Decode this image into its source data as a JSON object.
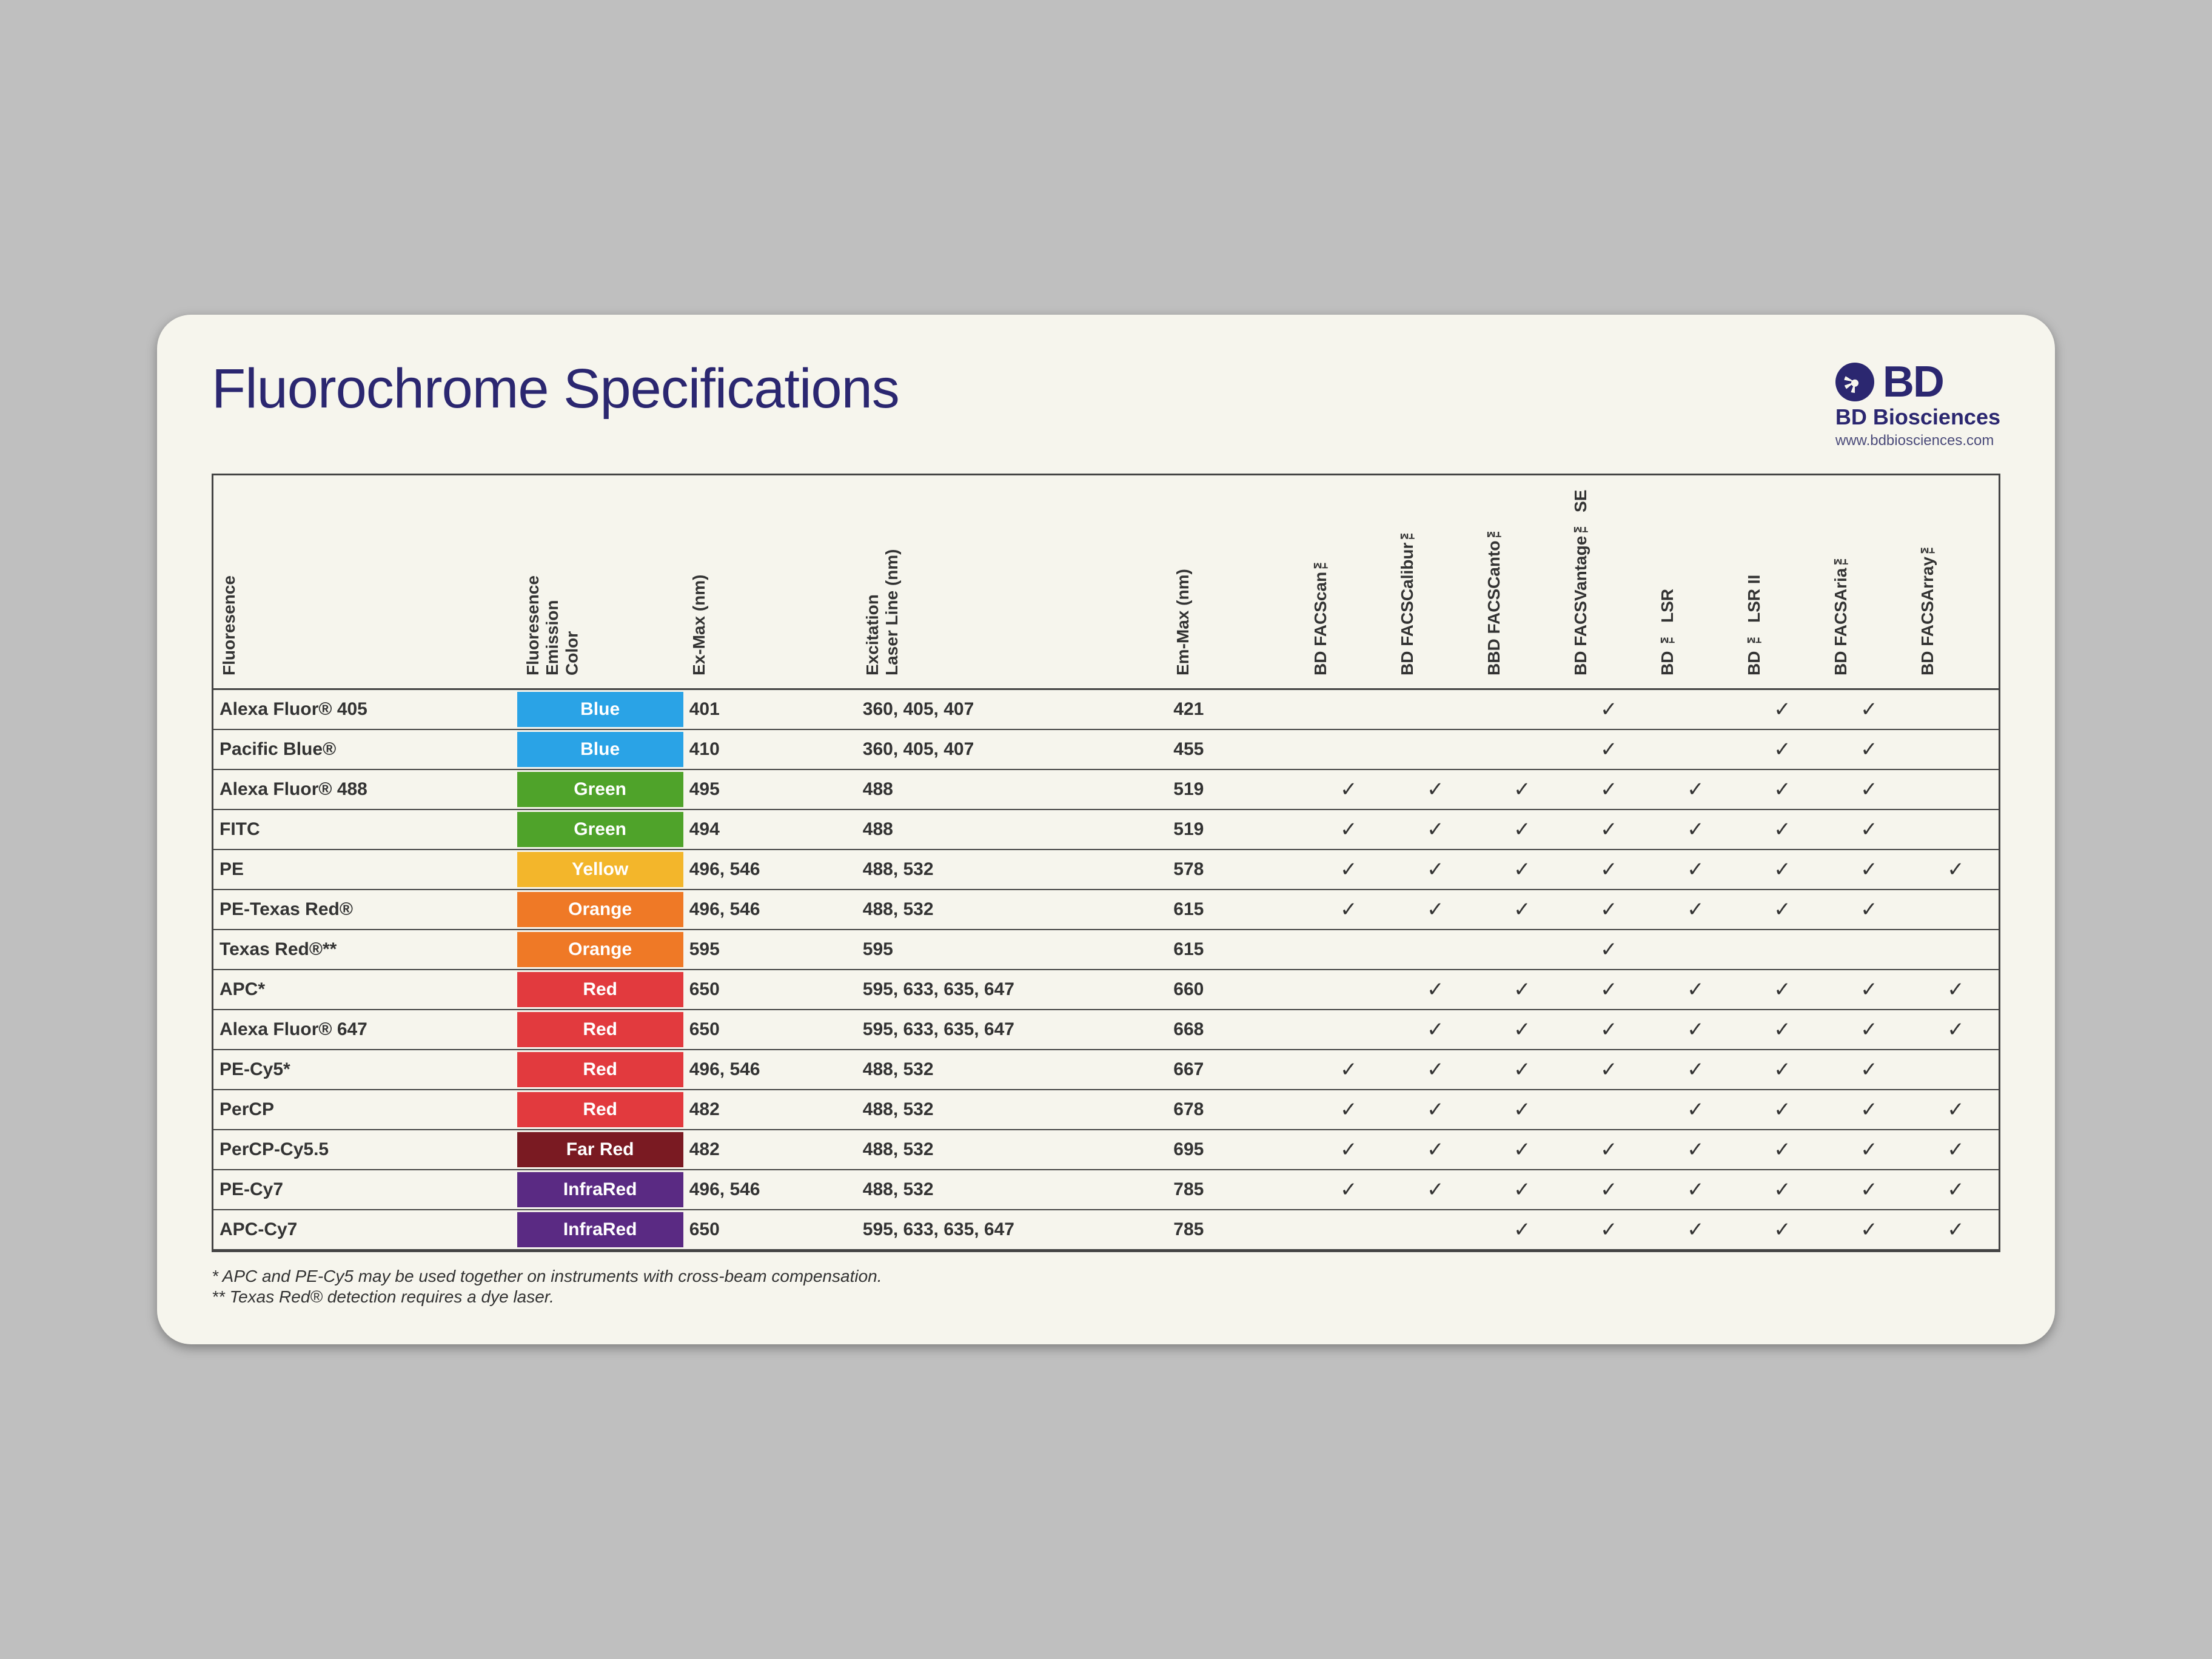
{
  "title": "Fluorochrome Specifications",
  "brand": {
    "name": "BD",
    "sub": "BD Biosciences",
    "url": "www.bdbiosciences.com"
  },
  "columns": [
    "Fluoresence",
    "Fluoresence\nEmission\nColor",
    "Ex-Max (nm)",
    "Excitation\nLaser Line (nm)",
    "Em-Max (nm)",
    "BD FACScan™",
    "BD FACSCalibur™",
    "BBD FACSCanto™",
    "BD FACSVantage™ SE",
    "BD ™ LSR",
    "BD ™ LSR II",
    "BD FACSAria™",
    "BD FACSArray™"
  ],
  "color_styles": {
    "Blue": {
      "bg": "#2aa3e6",
      "fg": "#ffffff"
    },
    "Green": {
      "bg": "#4fa32a",
      "fg": "#ffffff"
    },
    "Yellow": {
      "bg": "#f3b62b",
      "fg": "#ffffff"
    },
    "Orange": {
      "bg": "#ef7926",
      "fg": "#ffffff"
    },
    "Red": {
      "bg": "#e23a3e",
      "fg": "#ffffff"
    },
    "Far Red": {
      "bg": "#7a1a22",
      "fg": "#ffffff"
    },
    "InfraRed": {
      "bg": "#5a2a83",
      "fg": "#ffffff"
    }
  },
  "rows": [
    {
      "name": "Alexa Fluor® 405",
      "color": "Blue",
      "ex": "401",
      "laser": "360, 405, 407",
      "em": "421",
      "inst": [
        0,
        0,
        0,
        1,
        0,
        1,
        1,
        0
      ]
    },
    {
      "name": "Pacific Blue®",
      "color": "Blue",
      "ex": "410",
      "laser": "360, 405, 407",
      "em": "455",
      "inst": [
        0,
        0,
        0,
        1,
        0,
        1,
        1,
        0
      ]
    },
    {
      "name": "Alexa Fluor® 488",
      "color": "Green",
      "ex": "495",
      "laser": "488",
      "em": "519",
      "inst": [
        1,
        1,
        1,
        1,
        1,
        1,
        1,
        0
      ]
    },
    {
      "name": "FITC",
      "color": "Green",
      "ex": "494",
      "laser": "488",
      "em": "519",
      "inst": [
        1,
        1,
        1,
        1,
        1,
        1,
        1,
        0
      ]
    },
    {
      "name": "PE",
      "color": "Yellow",
      "ex": "496, 546",
      "laser": "488, 532",
      "em": "578",
      "inst": [
        1,
        1,
        1,
        1,
        1,
        1,
        1,
        1
      ]
    },
    {
      "name": "PE-Texas Red®",
      "color": "Orange",
      "ex": "496, 546",
      "laser": "488, 532",
      "em": "615",
      "inst": [
        1,
        1,
        1,
        1,
        1,
        1,
        1,
        0
      ]
    },
    {
      "name": "Texas Red®**",
      "color": "Orange",
      "ex": "595",
      "laser": "595",
      "em": "615",
      "inst": [
        0,
        0,
        0,
        1,
        0,
        0,
        0,
        0
      ]
    },
    {
      "name": "APC*",
      "color": "Red",
      "ex": "650",
      "laser": "595, 633, 635, 647",
      "em": "660",
      "inst": [
        0,
        1,
        1,
        1,
        1,
        1,
        1,
        1
      ]
    },
    {
      "name": "Alexa Fluor® 647",
      "color": "Red",
      "ex": "650",
      "laser": "595, 633, 635, 647",
      "em": "668",
      "inst": [
        0,
        1,
        1,
        1,
        1,
        1,
        1,
        1
      ]
    },
    {
      "name": "PE-Cy5*",
      "color": "Red",
      "ex": "496, 546",
      "laser": "488, 532",
      "em": "667",
      "inst": [
        1,
        1,
        1,
        1,
        1,
        1,
        1,
        0
      ]
    },
    {
      "name": "PerCP",
      "color": "Red",
      "ex": "482",
      "laser": "488, 532",
      "em": "678",
      "inst": [
        1,
        1,
        1,
        0,
        1,
        1,
        1,
        1
      ]
    },
    {
      "name": "PerCP-Cy5.5",
      "color": "Far Red",
      "ex": "482",
      "laser": "488, 532",
      "em": "695",
      "inst": [
        1,
        1,
        1,
        1,
        1,
        1,
        1,
        1
      ]
    },
    {
      "name": "PE-Cy7",
      "color": "InfraRed",
      "ex": "496, 546",
      "laser": "488, 532",
      "em": "785",
      "inst": [
        1,
        1,
        1,
        1,
        1,
        1,
        1,
        1
      ]
    },
    {
      "name": "APC-Cy7",
      "color": "InfraRed",
      "ex": "650",
      "laser": "595, 633, 635, 647",
      "em": "785",
      "inst": [
        0,
        0,
        1,
        1,
        1,
        1,
        1,
        1
      ]
    }
  ],
  "footnotes": [
    "* APC and PE-Cy5 may be used together on instruments with cross-beam compensation.",
    "** Texas Red® detection requires a dye laser."
  ],
  "checkmark": "✓"
}
